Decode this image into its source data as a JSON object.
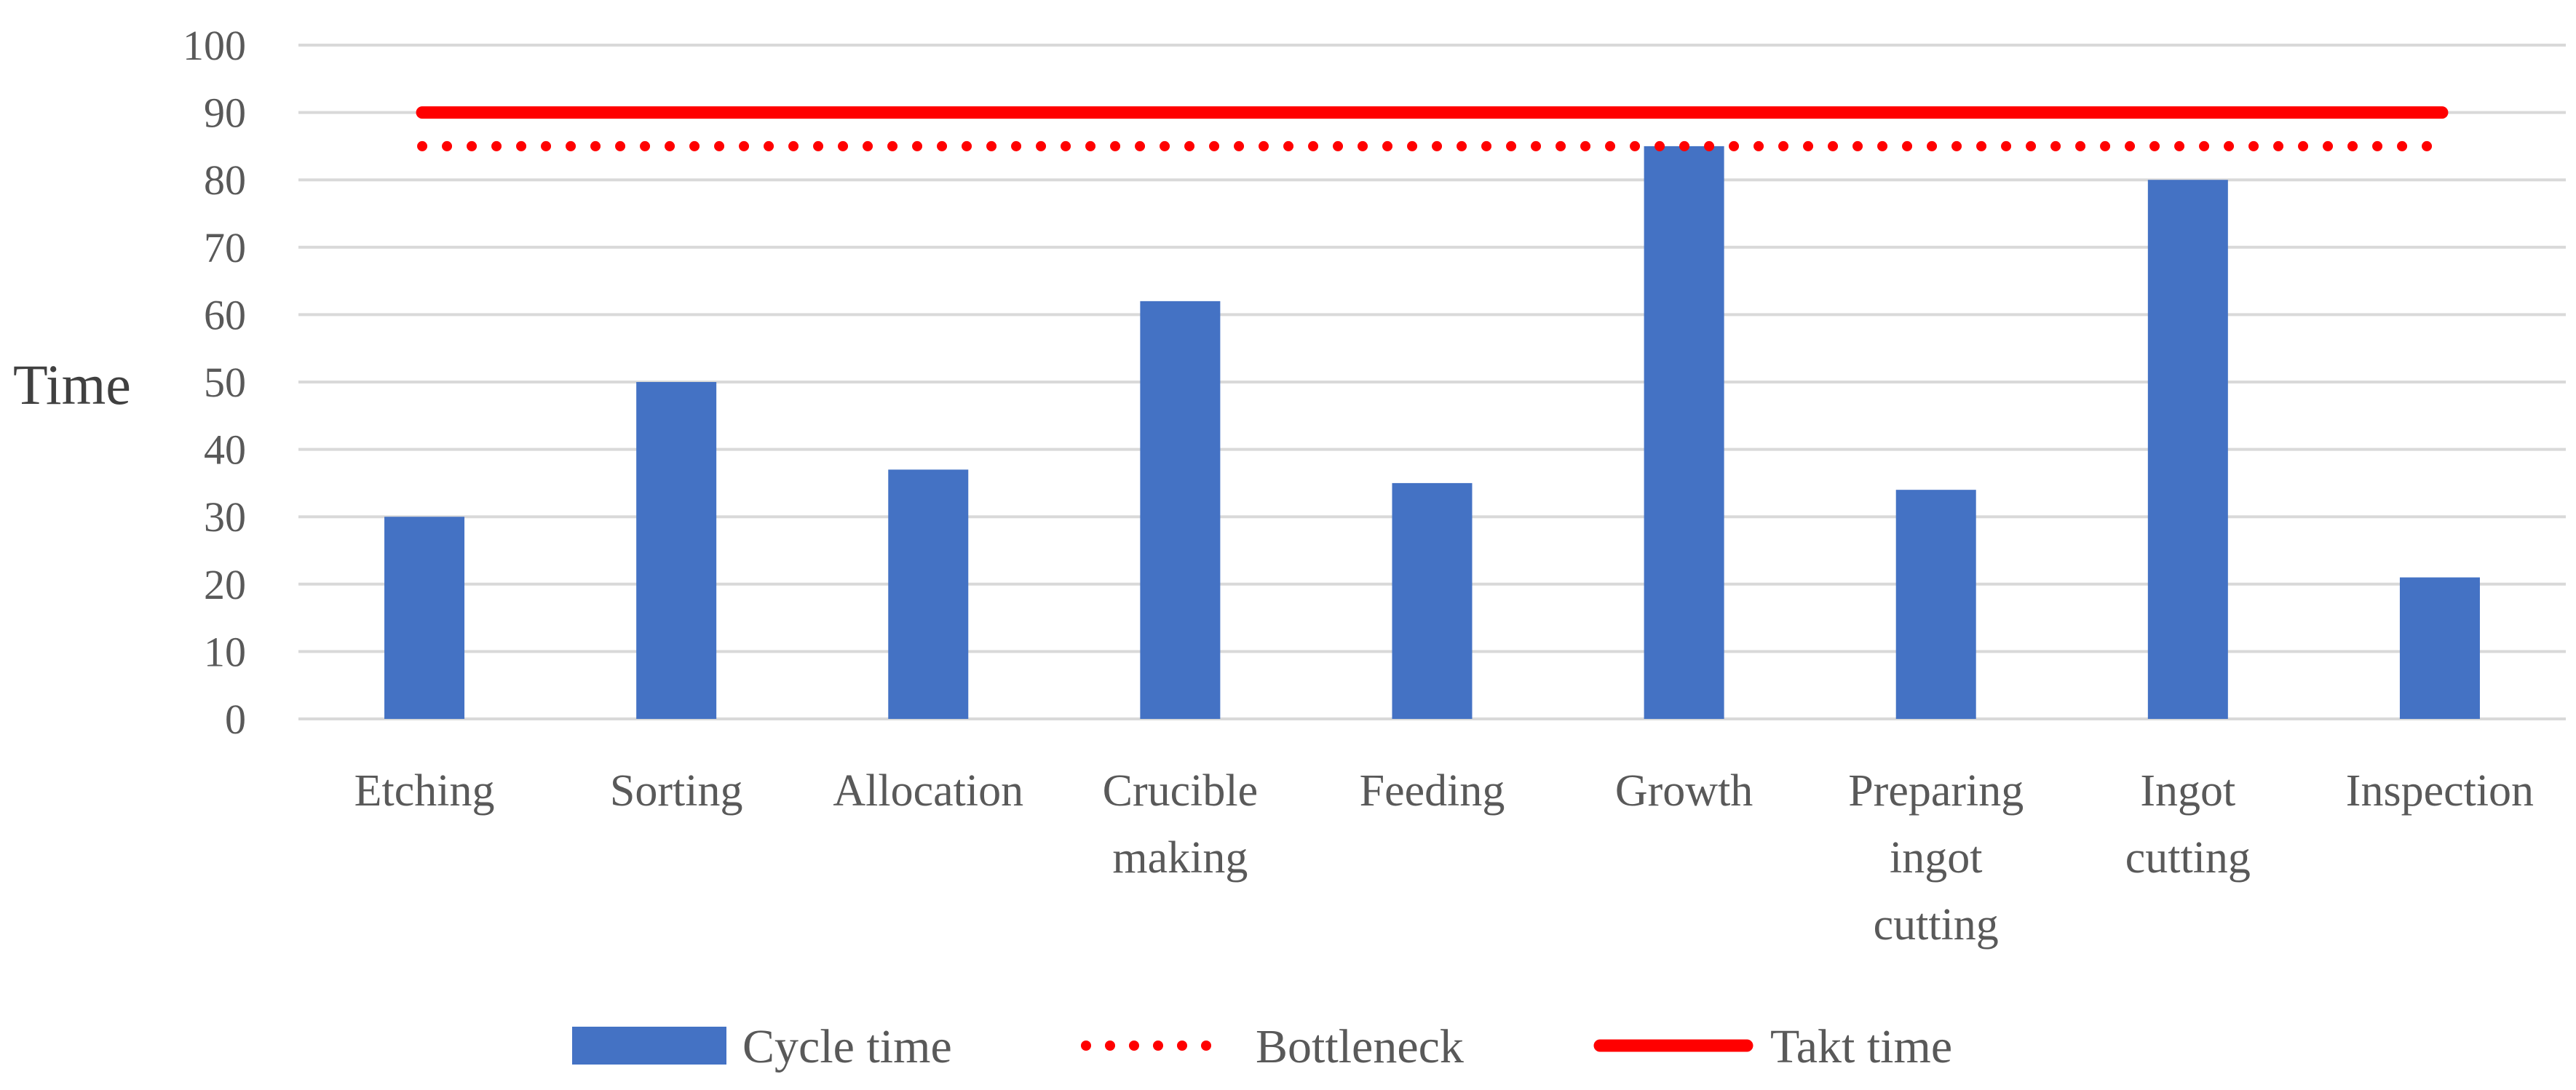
{
  "chart_data": {
    "type": "bar",
    "title": "",
    "xlabel": "",
    "ylabel": "Time",
    "ylim": [
      0,
      100
    ],
    "yticks": [
      0,
      10,
      20,
      30,
      40,
      50,
      60,
      70,
      80,
      90,
      100
    ],
    "grid": true,
    "categories": [
      [
        "Etching"
      ],
      [
        "Sorting"
      ],
      [
        "Allocation"
      ],
      [
        "Crucible",
        "making"
      ],
      [
        "Feeding"
      ],
      [
        "Growth"
      ],
      [
        "Preparing",
        "ingot",
        "cutting"
      ],
      [
        "Ingot",
        "cutting"
      ],
      [
        "Inspection"
      ]
    ],
    "series": [
      {
        "name": "Cycle time",
        "kind": "bar",
        "color": "#4472c4",
        "values": [
          30,
          50,
          37,
          62,
          35,
          85,
          34,
          80,
          21
        ]
      },
      {
        "name": "Bottleneck",
        "kind": "dotted-line",
        "color": "#ff0000",
        "value": 85
      },
      {
        "name": "Takt time",
        "kind": "solid-line",
        "color": "#ff0000",
        "value": 90
      }
    ],
    "legend_position": "bottom"
  }
}
